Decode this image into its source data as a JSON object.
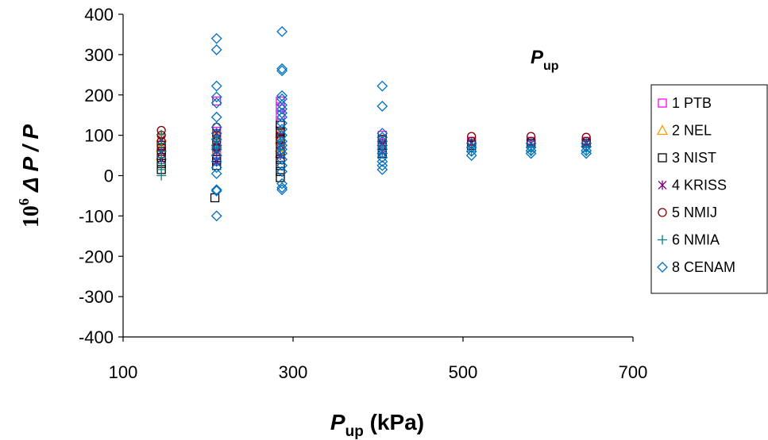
{
  "chart_data": {
    "type": "scatter",
    "xlabel": {
      "symbol": "P",
      "subscript": "up",
      "unit": " (kPa)"
    },
    "ylabel": {
      "factor": "10",
      "exponent": "6",
      "symbol": "Δ P / P"
    },
    "annotation": {
      "symbol": "P",
      "subscript": "up"
    },
    "xlim": [
      100,
      700
    ],
    "ylim": [
      -400,
      400
    ],
    "xticks": [
      100,
      300,
      500,
      700
    ],
    "yticks": [
      400,
      300,
      200,
      100,
      0,
      -100,
      -200,
      -300,
      -400
    ],
    "grid": false,
    "legend_position": "right",
    "series": [
      {
        "name": "1 PTB",
        "marker": "square",
        "color": "#ff00ff",
        "points": [
          [
            210,
            185
          ],
          [
            210,
            110
          ],
          [
            210,
            90
          ],
          [
            210,
            75
          ],
          [
            210,
            60
          ],
          [
            210,
            45
          ],
          [
            285,
            185
          ],
          [
            285,
            170
          ],
          [
            285,
            150
          ],
          [
            285,
            130
          ],
          [
            285,
            110
          ],
          [
            285,
            95
          ],
          [
            405,
            100
          ],
          [
            405,
            80
          ],
          [
            405,
            65
          ],
          [
            510,
            85
          ],
          [
            580,
            85
          ],
          [
            645,
            85
          ]
        ]
      },
      {
        "name": "2 NEL",
        "marker": "triangle",
        "color": "#ff9900",
        "points": [
          [
            145,
            95
          ],
          [
            145,
            70
          ],
          [
            145,
            50
          ],
          [
            210,
            100
          ],
          [
            210,
            80
          ],
          [
            210,
            60
          ],
          [
            285,
            105
          ],
          [
            285,
            90
          ],
          [
            285,
            70
          ],
          [
            285,
            55
          ]
        ]
      },
      {
        "name": "3 NIST",
        "marker": "square",
        "color": "#000000",
        "points": [
          [
            145,
            75
          ],
          [
            145,
            60
          ],
          [
            145,
            45
          ],
          [
            145,
            30
          ],
          [
            145,
            15
          ],
          [
            208,
            -55
          ],
          [
            210,
            40
          ],
          [
            210,
            25
          ],
          [
            285,
            125
          ],
          [
            285,
            110
          ],
          [
            285,
            90
          ],
          [
            285,
            75
          ],
          [
            285,
            55
          ],
          [
            285,
            40
          ],
          [
            285,
            25
          ],
          [
            285,
            10
          ],
          [
            285,
            -5
          ],
          [
            405,
            90
          ],
          [
            405,
            75
          ],
          [
            405,
            55
          ],
          [
            510,
            75
          ],
          [
            580,
            80
          ],
          [
            645,
            80
          ]
        ]
      },
      {
        "name": "4 KRISS",
        "marker": "asterisk",
        "color": "#800080",
        "points": [
          [
            145,
            90
          ],
          [
            145,
            60
          ],
          [
            145,
            40
          ],
          [
            210,
            105
          ],
          [
            210,
            80
          ],
          [
            210,
            60
          ],
          [
            210,
            35
          ],
          [
            285,
            100
          ],
          [
            285,
            75
          ],
          [
            285,
            50
          ],
          [
            405,
            80
          ],
          [
            405,
            60
          ],
          [
            510,
            80
          ],
          [
            580,
            80
          ],
          [
            645,
            80
          ]
        ]
      },
      {
        "name": "5 NMIJ",
        "marker": "circle",
        "color": "#800000",
        "points": [
          [
            145,
            112
          ],
          [
            145,
            100
          ],
          [
            145,
            85
          ],
          [
            145,
            70
          ],
          [
            210,
            120
          ],
          [
            210,
            100
          ],
          [
            210,
            85
          ],
          [
            210,
            70
          ],
          [
            285,
            110
          ],
          [
            285,
            90
          ],
          [
            285,
            75
          ],
          [
            405,
            90
          ],
          [
            405,
            75
          ],
          [
            510,
            97
          ],
          [
            510,
            85
          ],
          [
            580,
            97
          ],
          [
            580,
            85
          ],
          [
            645,
            95
          ],
          [
            645,
            85
          ]
        ]
      },
      {
        "name": "6 NMIA",
        "marker": "plus",
        "color": "#008080",
        "points": [
          [
            145,
            102
          ],
          [
            145,
            80
          ],
          [
            145,
            60
          ],
          [
            145,
            45
          ],
          [
            145,
            30
          ],
          [
            145,
            15
          ],
          [
            145,
            0
          ],
          [
            210,
            90
          ],
          [
            210,
            70
          ],
          [
            285,
            85
          ],
          [
            285,
            65
          ],
          [
            405,
            70
          ],
          [
            405,
            55
          ],
          [
            510,
            70
          ],
          [
            510,
            60
          ],
          [
            580,
            70
          ],
          [
            580,
            60
          ],
          [
            645,
            70
          ],
          [
            645,
            60
          ]
        ]
      },
      {
        "name": "8 CENAM",
        "marker": "diamond",
        "color": "#0070c0",
        "points": [
          [
            210,
            340
          ],
          [
            210,
            312
          ],
          [
            210,
            222
          ],
          [
            210,
            195
          ],
          [
            210,
            180
          ],
          [
            210,
            145
          ],
          [
            210,
            120
          ],
          [
            210,
            105
          ],
          [
            210,
            90
          ],
          [
            210,
            75
          ],
          [
            210,
            65
          ],
          [
            210,
            50
          ],
          [
            210,
            35
          ],
          [
            210,
            20
          ],
          [
            210,
            5
          ],
          [
            210,
            -35
          ],
          [
            210,
            -38
          ],
          [
            210,
            -100
          ],
          [
            287,
            357
          ],
          [
            287,
            265
          ],
          [
            287,
            260
          ],
          [
            287,
            198
          ],
          [
            287,
            190
          ],
          [
            287,
            175
          ],
          [
            287,
            165
          ],
          [
            287,
            155
          ],
          [
            287,
            145
          ],
          [
            287,
            130
          ],
          [
            287,
            115
          ],
          [
            287,
            100
          ],
          [
            287,
            85
          ],
          [
            287,
            75
          ],
          [
            287,
            65
          ],
          [
            287,
            55
          ],
          [
            287,
            40
          ],
          [
            287,
            25
          ],
          [
            287,
            10
          ],
          [
            287,
            -20
          ],
          [
            287,
            -30
          ],
          [
            287,
            -35
          ],
          [
            405,
            222
          ],
          [
            405,
            172
          ],
          [
            405,
            105
          ],
          [
            405,
            95
          ],
          [
            405,
            85
          ],
          [
            405,
            75
          ],
          [
            405,
            65
          ],
          [
            405,
            55
          ],
          [
            405,
            45
          ],
          [
            405,
            35
          ],
          [
            405,
            25
          ],
          [
            405,
            15
          ],
          [
            510,
            80
          ],
          [
            510,
            70
          ],
          [
            510,
            60
          ],
          [
            510,
            50
          ],
          [
            580,
            80
          ],
          [
            580,
            70
          ],
          [
            580,
            62
          ],
          [
            580,
            55
          ],
          [
            645,
            80
          ],
          [
            645,
            72
          ],
          [
            645,
            62
          ],
          [
            645,
            55
          ]
        ]
      }
    ]
  }
}
